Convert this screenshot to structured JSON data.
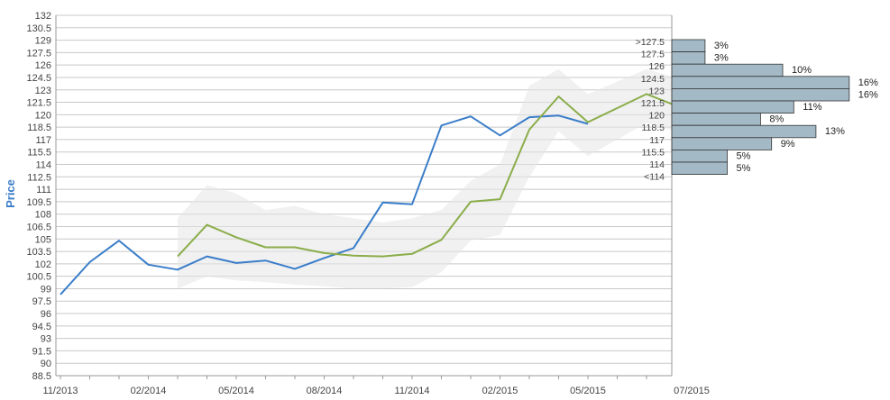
{
  "colors": {
    "actual": "#3a7dc9",
    "forecast": "#8aad4a",
    "band": "#e6e6e6",
    "hist_bar": "#a3b9c6",
    "hist_border": "#333333",
    "grid": "#c8c8c8",
    "axis_text": "#444444",
    "ylabel": "#3a7dc9"
  },
  "chart_data": {
    "type": "line",
    "title": "",
    "xlabel": "",
    "ylabel": "Price",
    "ylim": [
      88.5,
      132
    ],
    "yticks": [
      "88.5",
      "90",
      "91.5",
      "93",
      "94.5",
      "96",
      "97.5",
      "99",
      "100.5",
      "102",
      "103.5",
      "105",
      "106.5",
      "108",
      "109.5",
      "111",
      "112.5",
      "114",
      "115.5",
      "117",
      "118.5",
      "120",
      "121.5",
      "123",
      "124.5",
      "126",
      "127.5",
      "129",
      "130.5",
      "132"
    ],
    "x_labels": [
      "11/2013",
      "02/2014",
      "05/2014",
      "08/2014",
      "11/2014",
      "02/2015",
      "05/2015",
      "07/2015"
    ],
    "x_label_months": [
      0,
      3,
      6,
      9,
      12,
      15,
      18,
      20
    ],
    "series": [
      {
        "key": "actual",
        "x_months": [
          0,
          1,
          2,
          3,
          4,
          5,
          6,
          7,
          8,
          9,
          10,
          11,
          12,
          13,
          14,
          15,
          16,
          17,
          18
        ],
        "y": [
          98.3,
          102.2,
          104.8,
          101.9,
          101.3,
          102.9,
          102.1,
          102.4,
          101.4,
          102.7,
          103.9,
          109.4,
          109.2,
          118.7,
          119.8,
          117.5,
          119.7,
          119.9,
          118.9
        ]
      },
      {
        "key": "forecast",
        "x_months": [
          4,
          5,
          6,
          7,
          8,
          9,
          10,
          11,
          12,
          13,
          14,
          15,
          16,
          17,
          18,
          19,
          20,
          21
        ],
        "y": [
          102.9,
          106.7,
          105.2,
          104.0,
          104.0,
          103.3,
          103.0,
          102.9,
          103.2,
          104.9,
          109.5,
          109.8,
          118.2,
          122.2,
          119.1,
          120.8,
          122.5,
          121.1
        ]
      }
    ],
    "band": {
      "x_months": [
        4,
        5,
        6,
        7,
        8,
        9,
        10,
        11,
        12,
        13,
        14,
        15,
        16,
        17,
        18,
        19,
        20,
        21
      ],
      "upper": [
        107.5,
        111.5,
        110.5,
        108.5,
        109.0,
        108.0,
        107.5,
        107.0,
        107.5,
        108.5,
        112.0,
        114.0,
        123.5,
        125.5,
        122.5,
        124.0,
        125.5,
        124.5
      ],
      "lower": [
        99.0,
        100.5,
        100.0,
        99.8,
        99.5,
        99.3,
        99.0,
        99.0,
        99.2,
        101.0,
        104.8,
        105.5,
        112.5,
        118.0,
        115.0,
        117.0,
        119.0,
        118.0
      ]
    },
    "histogram": {
      "bins": [
        ">127.5",
        "127.5",
        "126",
        "124.5",
        "123",
        "121.5",
        "120",
        "118.5",
        "117",
        "115.5",
        "114",
        "<114"
      ],
      "values": [
        3,
        3,
        10,
        16,
        16,
        11,
        8,
        13,
        9,
        5,
        5,
        null
      ],
      "labels": [
        "3%",
        "3%",
        "10%",
        "16%",
        "16%",
        "11%",
        "8%",
        "13%",
        "9%",
        "5%",
        "5%",
        ""
      ]
    }
  }
}
